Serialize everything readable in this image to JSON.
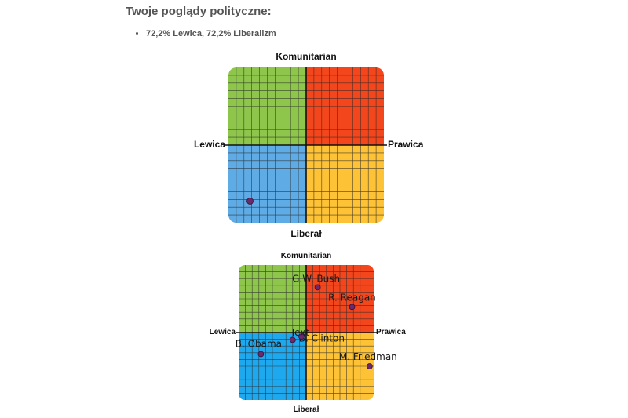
{
  "heading": "Twoje poglądy polityczne:",
  "result_items": [
    "72,2% Lewica, 72,2% Liberalizm"
  ],
  "colors": {
    "top_left": "#8dc64b",
    "top_right": "#f4461c",
    "bottom_left": "#5eabe6",
    "bottom_right": "#fdc235",
    "bottom_left_alt": "#1ea9ef",
    "point": "#6b2a6b",
    "grid": "#2a2a2a"
  },
  "chart_data": [
    {
      "type": "scatter",
      "top_label": "Komunitarian",
      "bottom_label": "Liberał",
      "left_label": "Lewica",
      "right_label": "Prawica",
      "xlim": [
        -100,
        100
      ],
      "ylim": [
        -100,
        100
      ],
      "points": [
        {
          "x": -72.2,
          "y": -72.2,
          "label": ""
        }
      ]
    },
    {
      "type": "scatter",
      "top_label": "Komunitarian",
      "bottom_label": "Liberał",
      "left_label": "Lewica",
      "right_label": "Prawica",
      "xlim": [
        -100,
        100
      ],
      "ylim": [
        -100,
        100
      ],
      "points": [
        {
          "x": 17,
          "y": 67,
          "label": "G.W. Bush"
        },
        {
          "x": 68,
          "y": 38,
          "label": "R. Reagan"
        },
        {
          "x": -20,
          "y": -11,
          "label": "B. Clinton"
        },
        {
          "x": -67,
          "y": -32,
          "label": "B. Obama"
        },
        {
          "x": 94,
          "y": -50,
          "label": "M. Friedman"
        },
        {
          "x": -7,
          "y": -6,
          "label": "Text"
        }
      ]
    }
  ]
}
